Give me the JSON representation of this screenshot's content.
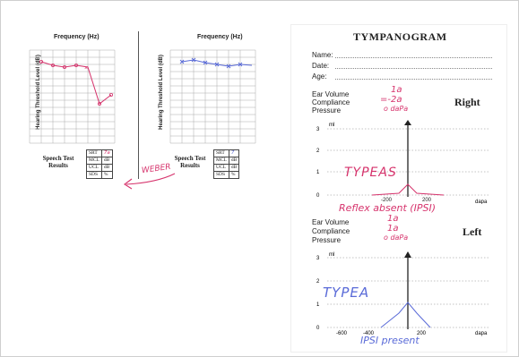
{
  "audiogram": {
    "freq_label": "Frequency (Hz)",
    "y_label": "Hearing Threshold Level (dB)",
    "speech_test": "Speech Test",
    "results": "Results",
    "rows": [
      "SRT",
      "MCL",
      "UCL",
      "SDS"
    ],
    "left_values": [
      "7a",
      "dB",
      "dB",
      "%"
    ],
    "right_values": [
      "7",
      "dB",
      "dB",
      "%"
    ],
    "annotation": "WEBER"
  },
  "tymp": {
    "title": "TYMPANOGRAM",
    "name": "Name:",
    "date": "Date:",
    "age": "Age:",
    "ear_volume": "Ear Volume",
    "compliance": "Compliance",
    "pressure": "Pressure",
    "right": "Right",
    "left": "Left",
    "ml": "ml",
    "dapa": "dapa",
    "r_ev": "1a",
    "r_comp": "=-2a",
    "r_press": "o daPa",
    "r_type": "TYPEAS",
    "r_reflex": "Reflex absent (IPSI)",
    "l_ev": "1a",
    "l_comp": "1a",
    "l_press": "o daPa",
    "l_type": "TYPEA",
    "l_reflex": "IPSI present",
    "y_ticks": [
      "3",
      "2",
      "1",
      "0"
    ],
    "x_ticks": [
      "-600",
      "-400",
      "-200",
      "0",
      "200"
    ]
  },
  "colors": {
    "ink_red": "#d6336c",
    "ink_blue": "#5a6bd8",
    "grid": "#999999"
  }
}
